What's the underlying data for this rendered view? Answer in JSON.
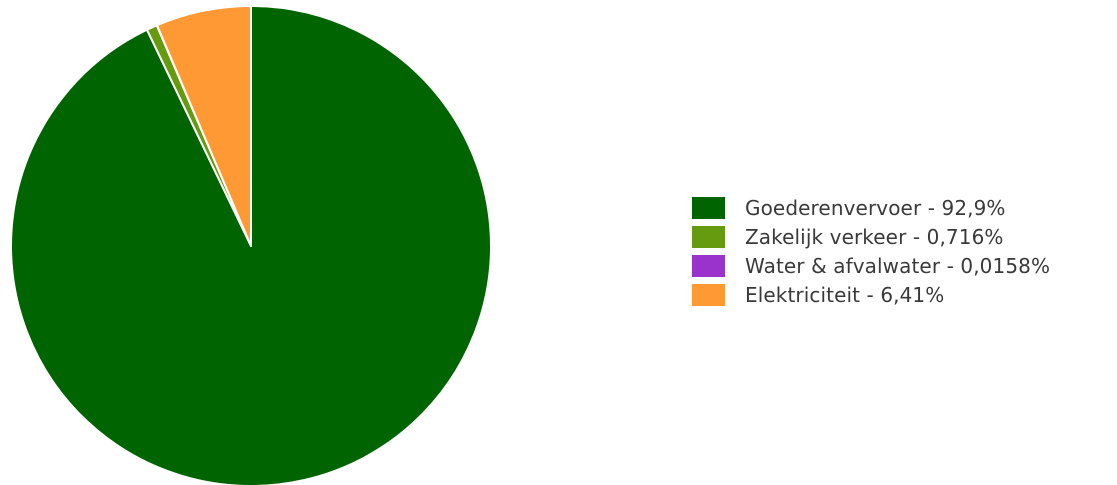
{
  "chart_data": {
    "type": "pie",
    "slices": [
      {
        "label": "Goederenvervoer - 92,9%",
        "value": 92.9,
        "color": "#006400"
      },
      {
        "label": "Zakelijk verkeer - 0,716%",
        "value": 0.716,
        "color": "#669a0f"
      },
      {
        "label": "Water & afvalwater - 0,0158%",
        "value": 0.0158,
        "color": "#9933cc"
      },
      {
        "label": "Elektriciteit - 6,41%",
        "value": 6.41,
        "color": "#ff9933"
      }
    ],
    "legend_position": "right",
    "start_angle": "top",
    "direction": "clockwise"
  }
}
